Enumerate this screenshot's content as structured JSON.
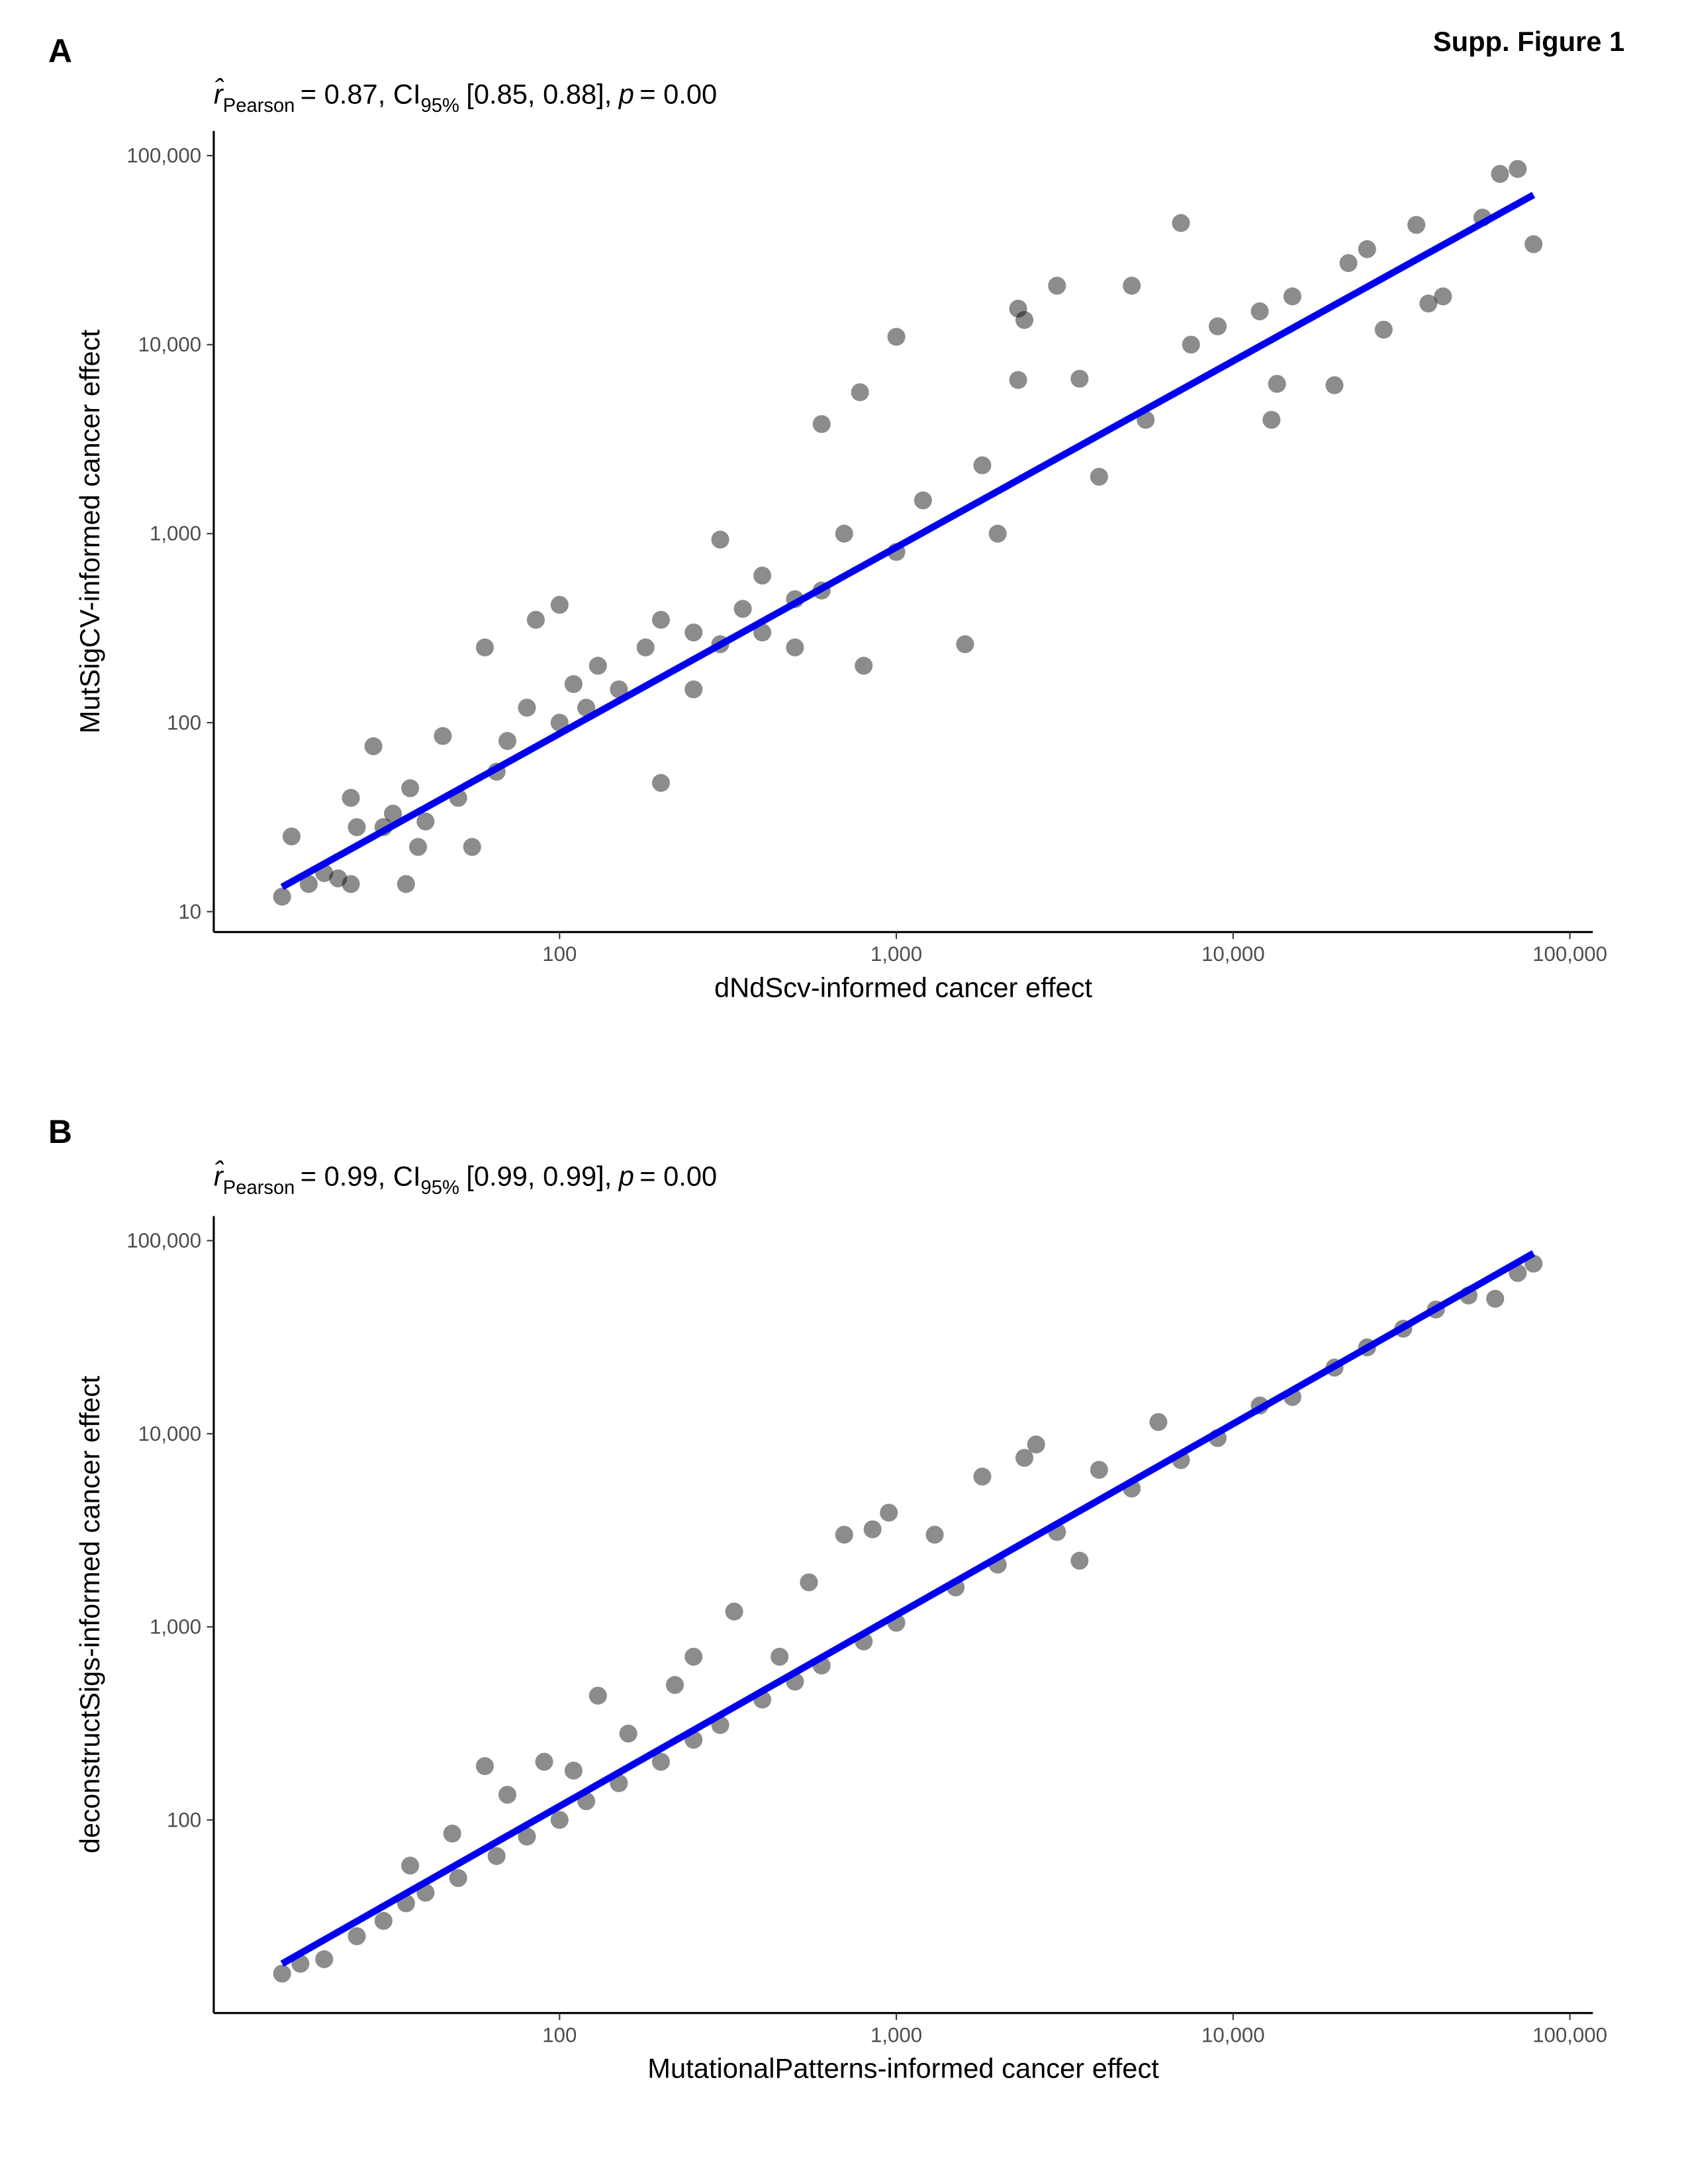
{
  "figure_title": "Supp. Figure 1",
  "chart_data": [
    {
      "type": "scatter",
      "panel": "A",
      "subtitle": [
        "r̂",
        "Pearson",
        "= 0.87, CI",
        "95%",
        "[0.85, 0.88],",
        "p",
        "= 0.00"
      ],
      "x_label": "dNdScv-informed cancer effect",
      "y_label": "MutSigCV-informed cancer effect",
      "log_x": true,
      "log_y": true,
      "color": "#000000",
      "opacity": 0.45,
      "fit_color": "#0000ee",
      "xlim": [
        9.4,
        117000
      ],
      "ylim": [
        7.8,
        135000
      ],
      "xticks": [
        100,
        {
          "value": 1000,
          "label": "1,000"
        },
        {
          "value": 10000,
          "label": "10,000"
        },
        {
          "value": 100000,
          "label": "100,000"
        }
      ],
      "yticks": [
        10,
        100,
        {
          "value": 1000,
          "label": "1,000"
        },
        {
          "value": 10000,
          "label": "10,000"
        },
        {
          "value": 100000,
          "label": "100,000"
        }
      ],
      "x": [
        15,
        16,
        18,
        20,
        22,
        24,
        24,
        25,
        28,
        30,
        32,
        35,
        36,
        38,
        40,
        45,
        50,
        55,
        60,
        65,
        70,
        80,
        85,
        100,
        100,
        110,
        120,
        130,
        150,
        180,
        200,
        200,
        250,
        250,
        300,
        300,
        350,
        400,
        400,
        500,
        500,
        600,
        600,
        700,
        780,
        800,
        1000,
        1000,
        1200,
        1600,
        1800,
        2000,
        2300,
        2400,
        2300,
        3000,
        3500,
        4000,
        5000,
        5500,
        7000,
        7500,
        9000,
        12000,
        13000,
        13500,
        15000,
        20000,
        22000,
        25000,
        28000,
        35000,
        38000,
        42000,
        55000,
        62000,
        70000,
        78000
      ],
      "y": [
        12,
        25,
        14,
        16,
        15,
        40,
        14,
        28,
        75,
        28,
        33,
        14,
        45,
        22,
        30,
        85,
        40,
        22,
        250,
        55,
        80,
        120,
        350,
        420,
        100,
        160,
        120,
        200,
        150,
        250,
        48,
        350,
        300,
        150,
        930,
        260,
        400,
        300,
        600,
        450,
        250,
        3800,
        500,
        1000,
        5600,
        200,
        11000,
        800,
        1500,
        260,
        2300,
        1000,
        15500,
        13500,
        6500,
        20500,
        6600,
        2000,
        20500,
        4000,
        44000,
        10000,
        12500,
        15000,
        4000,
        6200,
        18000,
        6100,
        27000,
        32000,
        12000,
        43000,
        16500,
        18000,
        47000,
        80000,
        85000,
        34000
      ],
      "fit": {
        "x": [
          15,
          78000
        ],
        "y": [
          13.5,
          62000
        ]
      }
    },
    {
      "type": "scatter",
      "panel": "B",
      "subtitle": [
        "r̂",
        "Pearson",
        "= 0.99, CI",
        "95%",
        "[0.99, 0.99],",
        "p",
        "= 0.00"
      ],
      "x_label": "MutationalPatterns-informed cancer effect",
      "y_label": "deconstructSigs-informed cancer effect",
      "log_x": true,
      "log_y": true,
      "color": "#000000",
      "opacity": 0.45,
      "fit_color": "#0000ee",
      "xlim": [
        9.4,
        117000
      ],
      "ylim": [
        10,
        134000
      ],
      "xticks": [
        100,
        {
          "value": 1000,
          "label": "1,000"
        },
        {
          "value": 10000,
          "label": "10,000"
        },
        {
          "value": 100000,
          "label": "100,000"
        }
      ],
      "yticks": [
        100,
        {
          "value": 1000,
          "label": "1,000"
        },
        {
          "value": 10000,
          "label": "10,000"
        },
        {
          "value": 100000,
          "label": "100,000"
        }
      ],
      "x": [
        15,
        17,
        20,
        25,
        30,
        35,
        36,
        40,
        48,
        50,
        60,
        65,
        70,
        80,
        90,
        100,
        110,
        120,
        130,
        150,
        160,
        200,
        220,
        250,
        250,
        300,
        330,
        400,
        450,
        500,
        550,
        600,
        700,
        800,
        850,
        950,
        1000,
        1300,
        1500,
        1800,
        2000,
        2400,
        2600,
        3000,
        3500,
        4000,
        5000,
        6000,
        7000,
        9000,
        12000,
        15000,
        20000,
        25000,
        32000,
        40000,
        50000,
        60000,
        70000,
        78000
      ],
      "y": [
        16,
        18,
        19,
        25,
        30,
        37,
        58,
        42,
        85,
        50,
        190,
        65,
        135,
        82,
        200,
        100,
        180,
        125,
        440,
        155,
        280,
        200,
        500,
        700,
        260,
        310,
        1200,
        420,
        700,
        520,
        1700,
        630,
        3000,
        840,
        3200,
        3900,
        1050,
        3000,
        1600,
        6000,
        2100,
        7500,
        8800,
        3100,
        2200,
        6500,
        5200,
        11500,
        7300,
        9500,
        14000,
        15500,
        22000,
        28000,
        35000,
        44000,
        52000,
        50000,
        68000,
        76000
      ],
      "fit": {
        "x": [
          15,
          78000
        ],
        "y": [
          18,
          86000
        ]
      }
    }
  ]
}
